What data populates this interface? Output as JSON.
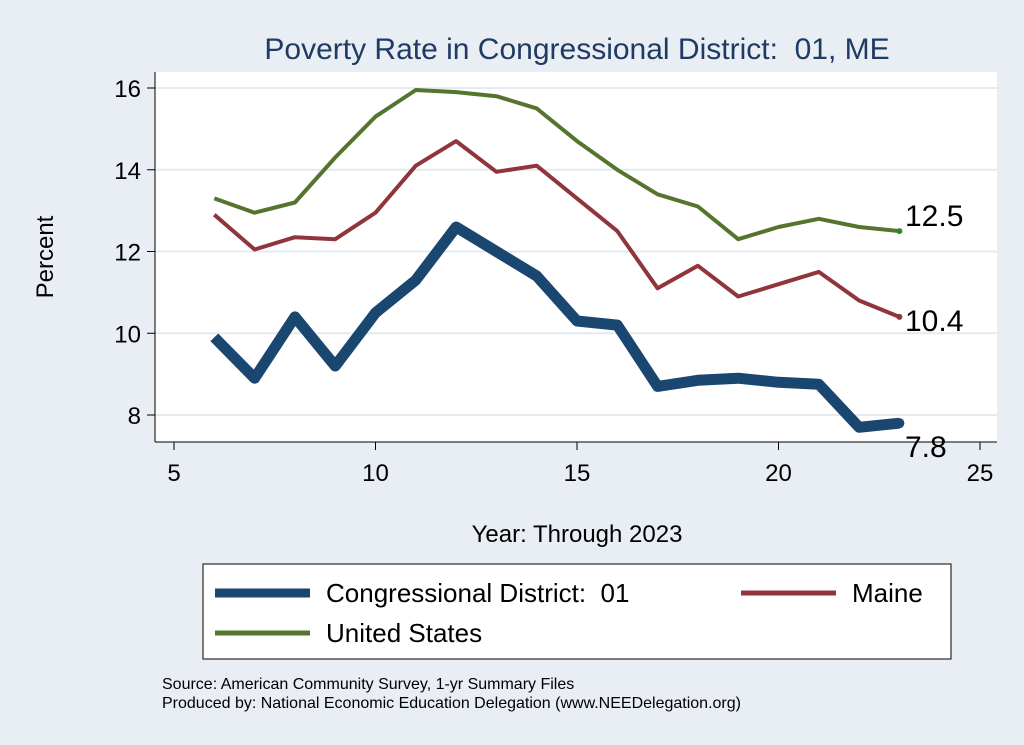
{
  "chart_data": {
    "type": "line",
    "title": "Poverty Rate in Congressional District:  01, ME",
    "xlabel": "Year: Through 2023",
    "ylabel": "Percent",
    "xlim": [
      5,
      25
    ],
    "ylim": [
      7.3,
      16.3
    ],
    "x_ticks": [
      5,
      10,
      15,
      20,
      25
    ],
    "y_ticks": [
      8,
      10,
      12,
      14,
      16
    ],
    "grid": "horizontal",
    "legend_position": "bottom",
    "series": [
      {
        "name": "Congressional District:  01",
        "color": "#1a476f",
        "x": [
          6,
          7,
          8,
          9,
          10,
          11,
          12,
          13,
          14,
          15,
          16,
          17,
          18,
          19,
          20,
          21,
          22,
          23
        ],
        "values": [
          9.9,
          8.9,
          10.4,
          9.2,
          10.5,
          11.3,
          12.6,
          12.0,
          11.4,
          10.3,
          10.2,
          8.7,
          8.85,
          8.9,
          8.8,
          8.75,
          7.7,
          7.8
        ],
        "end_label": "7.8"
      },
      {
        "name": "Maine",
        "color": "#90353b",
        "x": [
          6,
          7,
          8,
          9,
          10,
          11,
          12,
          13,
          14,
          15,
          16,
          17,
          18,
          19,
          20,
          21,
          22,
          23
        ],
        "values": [
          12.9,
          12.05,
          12.35,
          12.3,
          12.95,
          14.1,
          14.7,
          13.95,
          14.1,
          13.3,
          12.5,
          11.1,
          11.65,
          10.9,
          11.2,
          11.5,
          10.8,
          10.4
        ],
        "end_label": "10.4"
      },
      {
        "name": "United States",
        "color": "#55752f",
        "x": [
          6,
          7,
          8,
          9,
          10,
          11,
          12,
          13,
          14,
          15,
          16,
          17,
          18,
          19,
          20,
          21,
          22,
          23
        ],
        "values": [
          13.3,
          12.95,
          13.2,
          14.3,
          15.3,
          15.95,
          15.9,
          15.8,
          15.5,
          14.7,
          14.0,
          13.4,
          13.1,
          12.3,
          12.6,
          12.8,
          12.6,
          12.5
        ],
        "end_label": "12.5"
      }
    ],
    "notes": [
      "Source: American Community Survey, 1-yr Summary Files",
      "Produced by: National Economic Education Delegation (www.NEEDelegation.org)"
    ]
  }
}
